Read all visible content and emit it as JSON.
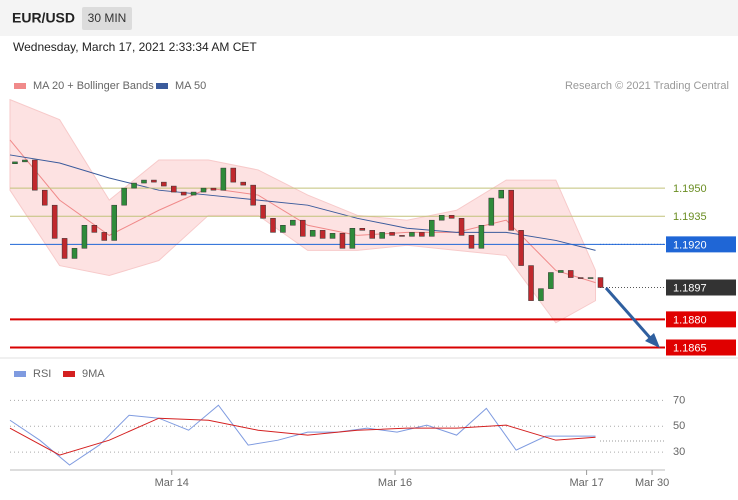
{
  "header": {
    "symbol": "EUR/USD",
    "interval": "30 MIN",
    "timestamp": "Wednesday, March 17, 2021 2:33:34 AM CET",
    "credit": "Research © 2021 Trading Central"
  },
  "chart_data": [
    {
      "type": "candlestick",
      "xlim": [
        0,
        66
      ],
      "ylim": [
        1.1861,
        1.1997
      ],
      "up_color": "#2e8b3a",
      "down_color": "#c0282d",
      "open": [
        1.1963,
        1.1964,
        1.1965,
        1.19489,
        1.19409,
        1.19232,
        1.19125,
        1.19179,
        1.19302,
        1.19264,
        1.19221,
        1.19409,
        1.195,
        1.19527,
        1.19543,
        1.19532,
        1.19511,
        1.19479,
        1.19463,
        1.19479,
        1.195,
        1.19489,
        1.19607,
        1.19532,
        1.19516,
        1.19409,
        1.19339,
        1.19264,
        1.19302,
        1.19329,
        1.19243,
        1.19275,
        1.19232,
        1.19259,
        1.19179,
        1.19286,
        1.19275,
        1.19232,
        1.19264,
        1.19248,
        1.19243,
        1.19264,
        1.19243,
        1.19329,
        1.19355,
        1.19339,
        1.19248,
        1.19179,
        1.19302,
        1.19447,
        1.19489,
        1.19275,
        1.19087,
        1.189,
        1.18964,
        1.1905,
        1.19061,
        1.19023,
        1.19018,
        1.19023
      ],
      "close": [
        1.1964,
        1.1965,
        1.19489,
        1.19409,
        1.19232,
        1.19125,
        1.19179,
        1.19302,
        1.19264,
        1.19221,
        1.19409,
        1.195,
        1.19527,
        1.19543,
        1.19532,
        1.19511,
        1.19479,
        1.19463,
        1.19479,
        1.195,
        1.19489,
        1.19607,
        1.19532,
        1.19516,
        1.19409,
        1.19339,
        1.19264,
        1.19302,
        1.19329,
        1.19243,
        1.19275,
        1.19232,
        1.19259,
        1.19179,
        1.19286,
        1.19275,
        1.19232,
        1.19264,
        1.19248,
        1.19243,
        1.19264,
        1.19243,
        1.19329,
        1.19355,
        1.19339,
        1.19248,
        1.19179,
        1.19302,
        1.19447,
        1.19489,
        1.19275,
        1.19087,
        1.189,
        1.18964,
        1.1905,
        1.19061,
        1.19023,
        1.19018,
        1.19023,
        1.1897
      ],
      "bands": {
        "color": "#fde2e2",
        "edge_color": "#f7caca",
        "x": [
          0,
          5,
          10,
          15,
          20,
          25,
          30,
          35,
          40,
          45,
          50,
          55,
          59
        ],
        "upper": [
          1.19972,
          1.19865,
          1.19436,
          1.1965,
          1.1965,
          1.19597,
          1.19463,
          1.19355,
          1.19329,
          1.19382,
          1.19543,
          1.19543,
          1.19061
        ],
        "lower": [
          1.19489,
          1.19087,
          1.19034,
          1.19114,
          1.19355,
          1.19355,
          1.19168,
          1.19168,
          1.19195,
          1.19168,
          1.19141,
          1.18782,
          1.189
        ]
      },
      "lines": [
        {
          "name": "MA 20 + Bollinger Bands",
          "color": "#f08a8a",
          "x": [
            0,
            5,
            10,
            15,
            20,
            25,
            30,
            35,
            40,
            45,
            50,
            55,
            59
          ],
          "values": [
            1.19757,
            1.19436,
            1.19248,
            1.19382,
            1.195,
            1.19463,
            1.19302,
            1.19248,
            1.19264,
            1.19264,
            1.19329,
            1.19061,
            1.18996
          ]
        },
        {
          "name": "MA 50",
          "color": "#3b5b9c",
          "x": [
            0,
            5,
            10,
            15,
            20,
            25,
            30,
            35,
            40,
            45,
            50,
            55,
            59
          ],
          "values": [
            1.19677,
            1.19634,
            1.19554,
            1.19489,
            1.19463,
            1.19436,
            1.19409,
            1.19339,
            1.19286,
            1.19264,
            1.19264,
            1.19221,
            1.19168
          ]
        }
      ],
      "levels": [
        {
          "value": 1.195,
          "label": "1.1950",
          "color": "#c2c27a",
          "text_color": "#6b8e23",
          "width": 1
        },
        {
          "value": 1.1935,
          "label": "1.1935",
          "color": "#c2c27a",
          "text_color": "#6b8e23",
          "width": 1
        },
        {
          "value": 1.192,
          "label": "1.1920",
          "color": "#1f66d6",
          "text_color": "#ffffff",
          "label_bg": "#1f66d6",
          "width": 1
        },
        {
          "value": 1.1897,
          "label": "1.1897",
          "color": "#555555",
          "text_color": "#ffffff",
          "label_bg": "#333333",
          "width": 1,
          "dotted": true
        },
        {
          "value": 1.188,
          "label": "1.1880",
          "color": "#d80000",
          "text_color": "#ffffff",
          "label_bg": "#e00000",
          "width": 2
        },
        {
          "value": 1.1865,
          "label": "1.1865",
          "color": "#d80000",
          "text_color": "#ffffff",
          "label_bg": "#e00000",
          "width": 2
        }
      ]
    },
    {
      "type": "line",
      "xlim": [
        0,
        66
      ],
      "ylim": [
        18,
        78
      ],
      "yticks": [
        30,
        50,
        70
      ],
      "grid": true,
      "xticks": [
        {
          "value": 16.3,
          "label": "Mar 14"
        },
        {
          "value": 38.8,
          "label": "Mar 16"
        },
        {
          "value": 58.1,
          "label": "Mar 17"
        },
        {
          "value": 64.7,
          "label": "Mar 30"
        }
      ],
      "series": [
        {
          "name": "RSI",
          "color": "#7f9be0",
          "x": [
            0,
            3,
            6,
            9,
            12,
            15,
            18,
            21,
            24,
            27,
            30,
            33,
            36,
            39,
            42,
            45,
            48,
            51,
            54,
            57,
            59
          ],
          "values": [
            54.6,
            39.2,
            20,
            35.4,
            58.5,
            56.2,
            46.9,
            66.2,
            35.4,
            39.2,
            45.4,
            45.4,
            48.5,
            45.4,
            50.8,
            43.1,
            63.8,
            31.5,
            42.3,
            42.3,
            42.3
          ]
        },
        {
          "name": "9MA",
          "color": "#d42020",
          "x": [
            0,
            5,
            10,
            15,
            20,
            25,
            30,
            35,
            40,
            45,
            50,
            55,
            59
          ],
          "values": [
            48.5,
            27.7,
            39.2,
            56.2,
            54.6,
            46.9,
            43.1,
            46.9,
            48.5,
            48.5,
            50.8,
            39.2,
            41.5
          ]
        }
      ]
    }
  ]
}
